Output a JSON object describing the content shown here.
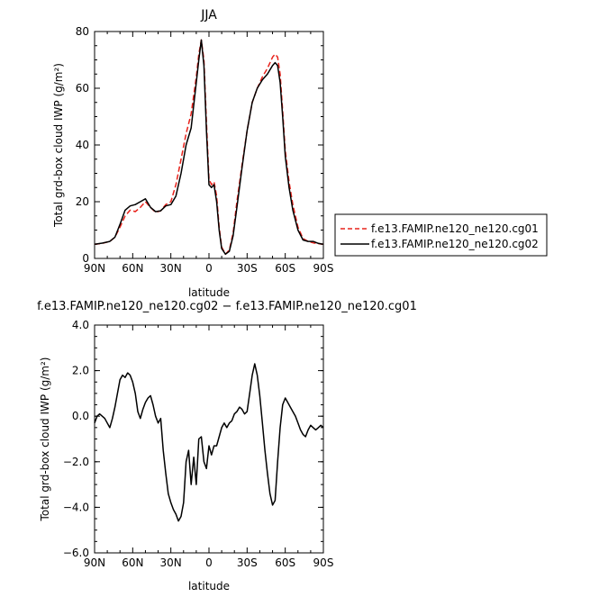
{
  "chart_data": [
    {
      "type": "line",
      "title": "JJA",
      "xlabel": "latitude",
      "ylabel": "Total grd-box cloud IWP (g/m²)",
      "xlim": [
        90,
        -90
      ],
      "ylim": [
        0,
        80
      ],
      "xticks": [
        {
          "v": 90,
          "label": "90N"
        },
        {
          "v": 60,
          "label": "60N"
        },
        {
          "v": 30,
          "label": "30N"
        },
        {
          "v": 0,
          "label": "0"
        },
        {
          "v": -30,
          "label": "30S"
        },
        {
          "v": -60,
          "label": "60S"
        },
        {
          "v": -90,
          "label": "90S"
        }
      ],
      "yticks": [
        {
          "v": 0,
          "label": "0"
        },
        {
          "v": 20,
          "label": "20"
        },
        {
          "v": 40,
          "label": "40"
        },
        {
          "v": 60,
          "label": "60"
        },
        {
          "v": 80,
          "label": "80"
        }
      ],
      "legend": "right",
      "series": [
        {
          "name": "f.e13.FAMIP.ne120_ne120.cg01",
          "color": "#e8231c",
          "dash": "dashed",
          "x": [
            90,
            84,
            78,
            74,
            70,
            66,
            62,
            58,
            54,
            50,
            46,
            42,
            38,
            34,
            30,
            26,
            22,
            18,
            14,
            10,
            8,
            6,
            4,
            2,
            0,
            -2,
            -4,
            -6,
            -8,
            -10,
            -13,
            -16,
            -19,
            -22,
            -26,
            -30,
            -34,
            -38,
            -42,
            -46,
            -50,
            -52,
            -54,
            -56,
            -58,
            -60,
            -63,
            -66,
            -70,
            -74,
            -78,
            -82,
            -86,
            -90
          ],
          "y": [
            5,
            5.3,
            6,
            7.5,
            11,
            15,
            17,
            16.5,
            18,
            20,
            18,
            16.3,
            16.8,
            19,
            20,
            26,
            35,
            44,
            51,
            64,
            72,
            77,
            70,
            48,
            28,
            26,
            27,
            22,
            11,
            4,
            1.5,
            3,
            9,
            20,
            33,
            45,
            55,
            60,
            64,
            67,
            71,
            72,
            71,
            65,
            52,
            38,
            27,
            19,
            11,
            7,
            6,
            5.5,
            5.2,
            5
          ]
        },
        {
          "name": "f.e13.FAMIP.ne120_ne120.cg02",
          "color": "#000000",
          "dash": "solid",
          "x": [
            90,
            84,
            78,
            74,
            70,
            66,
            62,
            58,
            54,
            50,
            46,
            42,
            38,
            34,
            30,
            26,
            22,
            18,
            14,
            10,
            8,
            6,
            4,
            2,
            0,
            -2,
            -4,
            -6,
            -8,
            -10,
            -13,
            -16,
            -19,
            -22,
            -26,
            -30,
            -34,
            -38,
            -42,
            -46,
            -50,
            -52,
            -54,
            -56,
            -58,
            -60,
            -63,
            -66,
            -70,
            -74,
            -78,
            -82,
            -86,
            -90
          ],
          "y": [
            5,
            5.4,
            6,
            7.5,
            12,
            17,
            18.5,
            19,
            20,
            21,
            18,
            16.5,
            16.8,
            18.5,
            19,
            22,
            30,
            40,
            46,
            62,
            70,
            77,
            68,
            45,
            26,
            25,
            26,
            20,
            10,
            3.5,
            1.5,
            2.5,
            8,
            18,
            32,
            45,
            55,
            60,
            63,
            65,
            68,
            69,
            68,
            62,
            50,
            36,
            25,
            17,
            10,
            6.5,
            6,
            6,
            5.3,
            5
          ]
        }
      ]
    },
    {
      "type": "line",
      "title": "f.e13.FAMIP.ne120_ne120.cg02 − f.e13.FAMIP.ne120_ne120.cg01",
      "xlabel": "latitude",
      "ylabel": "Total grd-box cloud IWP (g/m²)",
      "xlim": [
        90,
        -90
      ],
      "ylim": [
        -6,
        4
      ],
      "xticks": [
        {
          "v": 90,
          "label": "90N"
        },
        {
          "v": 60,
          "label": "60N"
        },
        {
          "v": 30,
          "label": "30N"
        },
        {
          "v": 0,
          "label": "0"
        },
        {
          "v": -30,
          "label": "30S"
        },
        {
          "v": -60,
          "label": "60S"
        },
        {
          "v": -90,
          "label": "90S"
        }
      ],
      "yticks": [
        {
          "v": 4,
          "label": "4.0"
        },
        {
          "v": 2,
          "label": "2.0"
        },
        {
          "v": 0,
          "label": "0.0"
        },
        {
          "v": -2,
          "label": "−2.0"
        },
        {
          "v": -4,
          "label": "−4.0"
        },
        {
          "v": -6,
          "label": "−6.0"
        }
      ],
      "series": [
        {
          "name": "",
          "color": "#000000",
          "dash": "solid",
          "x": [
            90,
            88,
            86,
            84,
            82,
            80,
            78,
            76,
            74,
            72,
            70,
            68,
            66,
            64,
            62,
            60,
            58,
            56,
            54,
            52,
            50,
            48,
            46,
            44,
            42,
            40,
            38,
            36,
            34,
            32,
            30,
            28,
            26,
            24,
            22,
            20,
            18,
            16,
            14,
            12,
            10,
            8,
            6,
            4,
            2,
            0,
            -2,
            -4,
            -6,
            -8,
            -10,
            -12,
            -14,
            -16,
            -18,
            -20,
            -22,
            -24,
            -26,
            -28,
            -30,
            -32,
            -34,
            -36,
            -38,
            -40,
            -42,
            -44,
            -46,
            -48,
            -50,
            -52,
            -54,
            -56,
            -58,
            -60,
            -62,
            -64,
            -66,
            -68,
            -70,
            -72,
            -74,
            -76,
            -78,
            -80,
            -82,
            -84,
            -86,
            -88,
            -90
          ],
          "y": [
            -0.3,
            0.0,
            0.1,
            0.0,
            -0.1,
            -0.3,
            -0.5,
            -0.1,
            0.4,
            1.0,
            1.6,
            1.8,
            1.7,
            1.9,
            1.8,
            1.5,
            1.0,
            0.2,
            -0.1,
            0.3,
            0.6,
            0.8,
            0.9,
            0.5,
            0.0,
            -0.3,
            -0.1,
            -1.5,
            -2.5,
            -3.4,
            -3.8,
            -4.1,
            -4.3,
            -4.6,
            -4.4,
            -3.8,
            -2.0,
            -1.5,
            -3.0,
            -1.8,
            -3.0,
            -1.0,
            -0.9,
            -2.0,
            -2.3,
            -1.3,
            -1.7,
            -1.3,
            -1.3,
            -0.9,
            -0.5,
            -0.3,
            -0.5,
            -0.3,
            -0.2,
            0.1,
            0.2,
            0.4,
            0.3,
            0.1,
            0.2,
            1.0,
            1.8,
            2.3,
            1.8,
            0.9,
            -0.3,
            -1.5,
            -2.5,
            -3.4,
            -3.9,
            -3.7,
            -2.0,
            -0.5,
            0.5,
            0.8,
            0.6,
            0.4,
            0.2,
            0.0,
            -0.3,
            -0.6,
            -0.8,
            -0.9,
            -0.6,
            -0.4,
            -0.5,
            -0.6,
            -0.5,
            -0.4,
            -0.5
          ]
        }
      ]
    }
  ]
}
